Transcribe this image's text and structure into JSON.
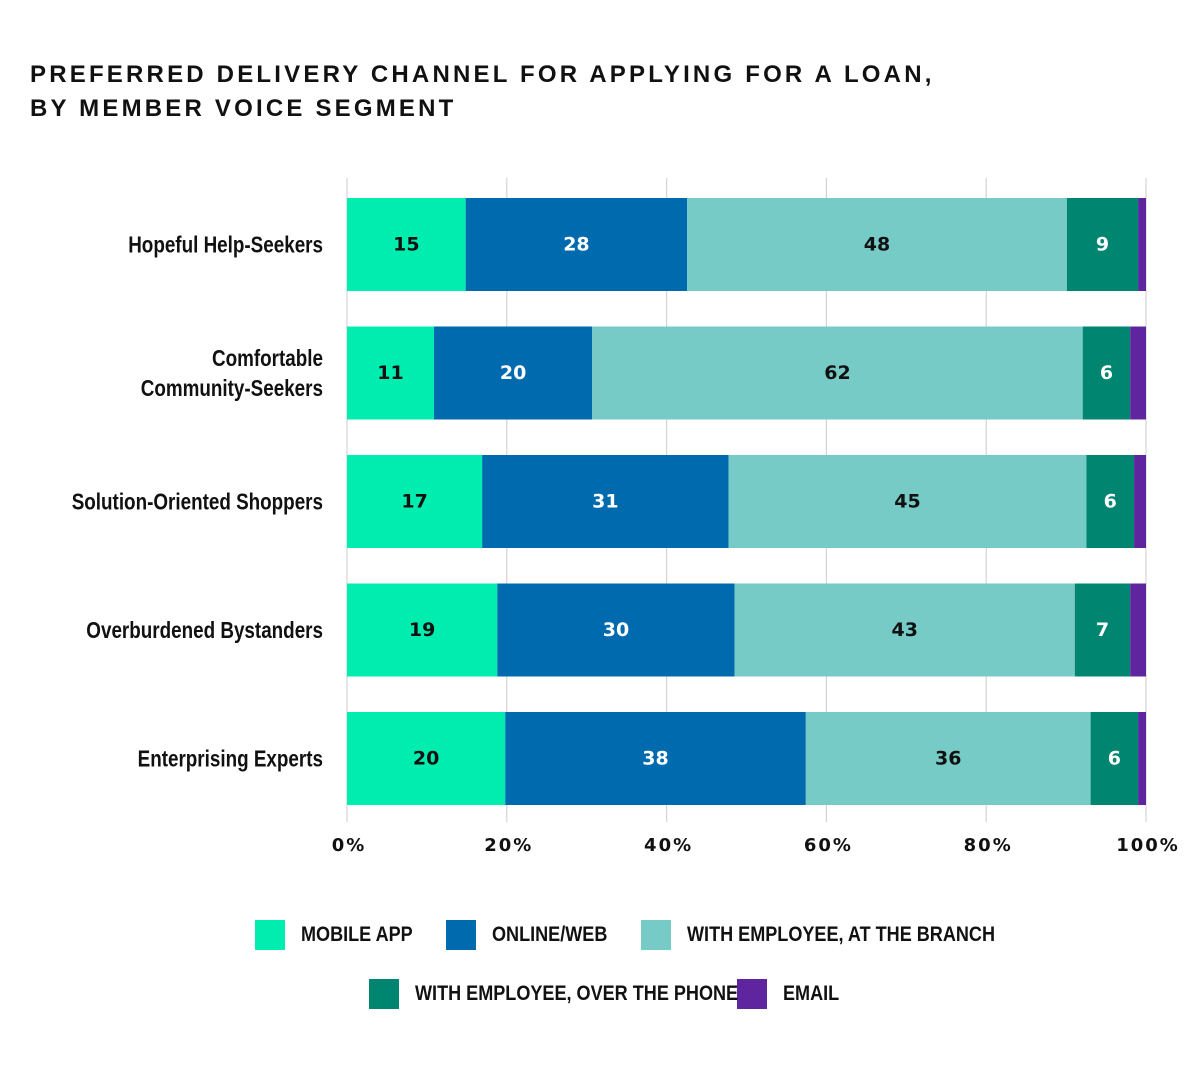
{
  "title_lines": [
    "PREFERRED DELIVERY CHANNEL FOR APPLYING FOR A LOAN,",
    "BY MEMBER VOICE SEGMENT"
  ],
  "chart_data": {
    "type": "bar",
    "orientation": "horizontal",
    "stacked": true,
    "title": "PREFERRED DELIVERY CHANNEL FOR APPLYING FOR A LOAN, BY MEMBER VOICE SEGMENT",
    "xlabel": "",
    "ylabel": "",
    "xlim": [
      0,
      100
    ],
    "grid": true,
    "legend_position": "bottom",
    "categories": [
      [
        "Hopeful Help-Seekers"
      ],
      [
        "Comfortable",
        "Community-Seekers"
      ],
      [
        "Solution-Oriented Shoppers"
      ],
      [
        "Overburdened Bystanders"
      ],
      [
        "Enterprising Experts"
      ]
    ],
    "x_ticks": [
      "0%",
      "20%",
      "40%",
      "60%",
      "80%",
      "100%"
    ],
    "x_tick_values": [
      0,
      20,
      40,
      60,
      80,
      100
    ],
    "series": [
      {
        "name": "MOBILE APP",
        "color": "#00EDB0",
        "label_color": "#111111",
        "values": [
          15,
          11,
          17,
          19,
          20
        ],
        "labels": [
          "15",
          "11",
          "17",
          "19",
          "20"
        ]
      },
      {
        "name": "ONLINE/WEB",
        "color": "#006AAE",
        "label_color": "#FFFFFF",
        "values": [
          28,
          20,
          31,
          30,
          38
        ],
        "labels": [
          "28",
          "20",
          "31",
          "30",
          "38"
        ]
      },
      {
        "name": "WITH EMPLOYEE, AT THE BRANCH",
        "color": "#76CBC6",
        "label_color": "#111111",
        "values": [
          48,
          62,
          45,
          43,
          36
        ],
        "labels": [
          "48",
          "62",
          "45",
          "43",
          "36"
        ]
      },
      {
        "name": "WITH EMPLOYEE, OVER THE PHONE",
        "color": "#008570",
        "label_color": "#FFFFFF",
        "values": [
          9,
          6,
          6,
          7,
          6
        ],
        "labels": [
          "9",
          "6",
          "6",
          "7",
          "6"
        ]
      },
      {
        "name": "EMAIL",
        "color": "#5F259F",
        "label_color": "#FFFFFF",
        "values": [
          1,
          2,
          1.5,
          2,
          1
        ],
        "labels": [
          "",
          "",
          "",
          "",
          ""
        ]
      }
    ]
  },
  "legend_rows": [
    [
      0,
      1,
      2
    ],
    [
      3,
      4
    ]
  ]
}
